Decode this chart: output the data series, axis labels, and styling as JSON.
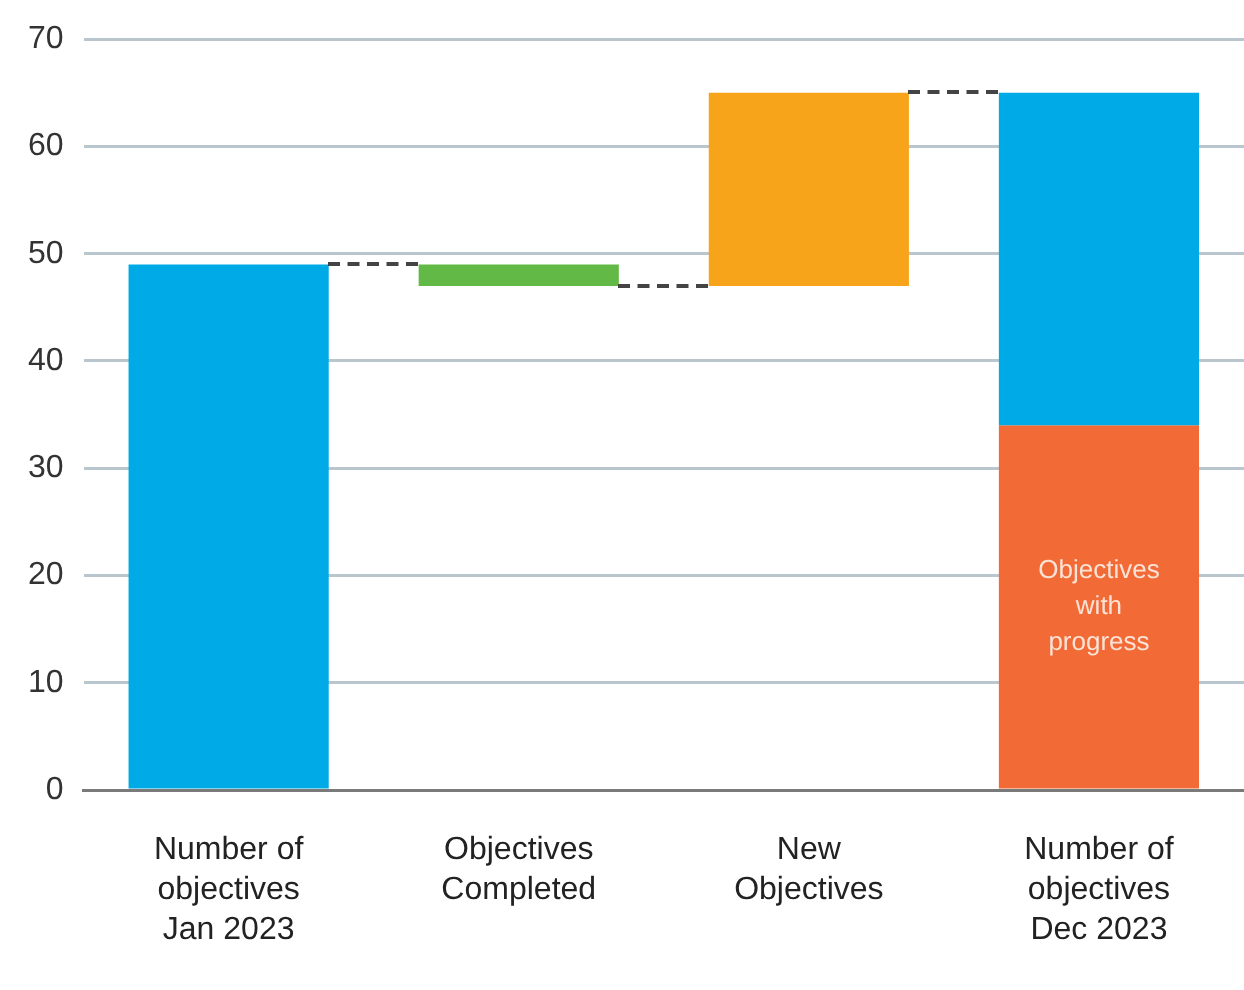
{
  "chart_data": {
    "type": "bar",
    "categories": [
      "Number of objectives Jan 2023",
      "Objectives Completed",
      "New Objectives",
      "Number of objectives Dec 2023"
    ],
    "series": [
      {
        "colors": [
          "#00aae6",
          "#62b946",
          "#f8a41b",
          "#00aae6"
        ],
        "values": [
          49,
          -2,
          18,
          31
        ],
        "base": [
          0,
          49,
          47,
          34
        ]
      },
      {
        "name": "Objectives with progress",
        "color": "#f26a36",
        "values": [
          null,
          null,
          null,
          34
        ],
        "base": [
          null,
          null,
          null,
          0
        ]
      }
    ],
    "ylim": [
      0,
      70
    ],
    "yticks": [
      0,
      10,
      20,
      30,
      40,
      50,
      60,
      70
    ],
    "grid": "y",
    "legend": false
  }
}
